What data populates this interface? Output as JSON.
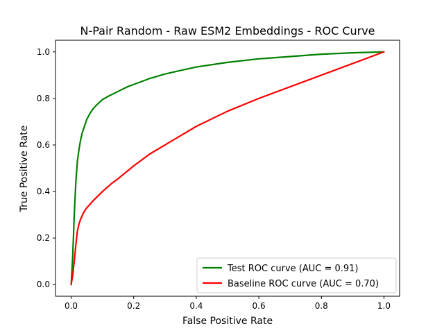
{
  "chart_data": {
    "type": "line",
    "title": "N-Pair Random - Raw ESM2 Embeddings - ROC Curve",
    "xlabel": "False Positive Rate",
    "ylabel": "True Positive Rate",
    "xlim": [
      -0.05,
      1.05
    ],
    "ylim": [
      -0.05,
      1.05
    ],
    "xticks": [
      0.0,
      0.2,
      0.4,
      0.6,
      0.8,
      1.0
    ],
    "yticks": [
      0.0,
      0.2,
      0.4,
      0.6,
      0.8,
      1.0
    ],
    "xtick_labels": [
      "0.0",
      "0.2",
      "0.4",
      "0.6",
      "0.8",
      "1.0"
    ],
    "ytick_labels": [
      "0.0",
      "0.2",
      "0.4",
      "0.6",
      "0.8",
      "1.0"
    ],
    "grid": false,
    "legend_position": "lower-right",
    "series": [
      {
        "name": "Test ROC curve (AUC = 0.91)",
        "color": "#008000",
        "x": [
          0.0,
          0.005,
          0.01,
          0.015,
          0.02,
          0.025,
          0.03,
          0.035,
          0.04,
          0.05,
          0.06,
          0.07,
          0.08,
          0.1,
          0.12,
          0.15,
          0.18,
          0.2,
          0.25,
          0.3,
          0.35,
          0.4,
          0.5,
          0.6,
          0.7,
          0.8,
          0.9,
          1.0
        ],
        "y": [
          0.0,
          0.12,
          0.3,
          0.44,
          0.53,
          0.58,
          0.62,
          0.65,
          0.67,
          0.71,
          0.735,
          0.755,
          0.77,
          0.795,
          0.81,
          0.83,
          0.85,
          0.86,
          0.885,
          0.905,
          0.92,
          0.935,
          0.955,
          0.97,
          0.98,
          0.99,
          0.996,
          1.0
        ]
      },
      {
        "name": "Baseline ROC curve (AUC = 0.70)",
        "color": "#ff0000",
        "x": [
          0.0,
          0.005,
          0.01,
          0.015,
          0.02,
          0.025,
          0.03,
          0.04,
          0.05,
          0.07,
          0.1,
          0.13,
          0.15,
          0.2,
          0.25,
          0.3,
          0.35,
          0.4,
          0.5,
          0.6,
          0.7,
          0.8,
          0.9,
          1.0
        ],
        "y": [
          0.0,
          0.04,
          0.1,
          0.17,
          0.23,
          0.26,
          0.28,
          0.31,
          0.33,
          0.36,
          0.4,
          0.435,
          0.455,
          0.51,
          0.56,
          0.6,
          0.64,
          0.68,
          0.745,
          0.8,
          0.85,
          0.9,
          0.95,
          1.0
        ]
      }
    ]
  }
}
